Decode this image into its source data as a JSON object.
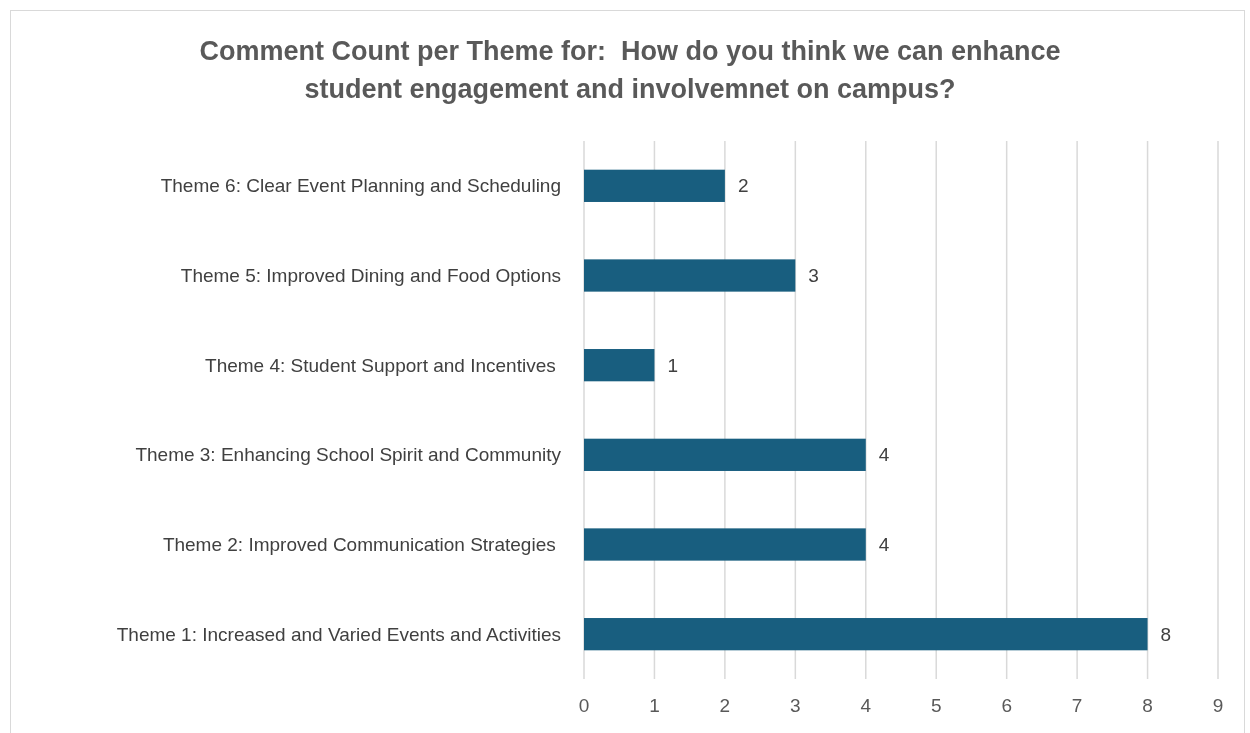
{
  "chart_data": {
    "type": "bar",
    "orientation": "horizontal",
    "title": "Comment Count per Theme for:  How do you think we can enhance student engagement and involvemnet on campus?",
    "categories": [
      "Theme 6: Clear Event Planning and Scheduling",
      "Theme 5: Improved Dining and Food Options",
      "Theme 4: Student Support and Incentives ",
      "Theme 3: Enhancing School Spirit and Community",
      "Theme 2: Improved Communication Strategies ",
      "Theme 1: Increased and Varied Events and Activities"
    ],
    "values": [
      2,
      3,
      1,
      4,
      4,
      8
    ],
    "color": "#185e7f",
    "xlim": [
      0,
      9
    ],
    "xticks": [
      0,
      1,
      2,
      3,
      4,
      5,
      6,
      7,
      8,
      9
    ],
    "grid": "x",
    "data_labels": true
  }
}
